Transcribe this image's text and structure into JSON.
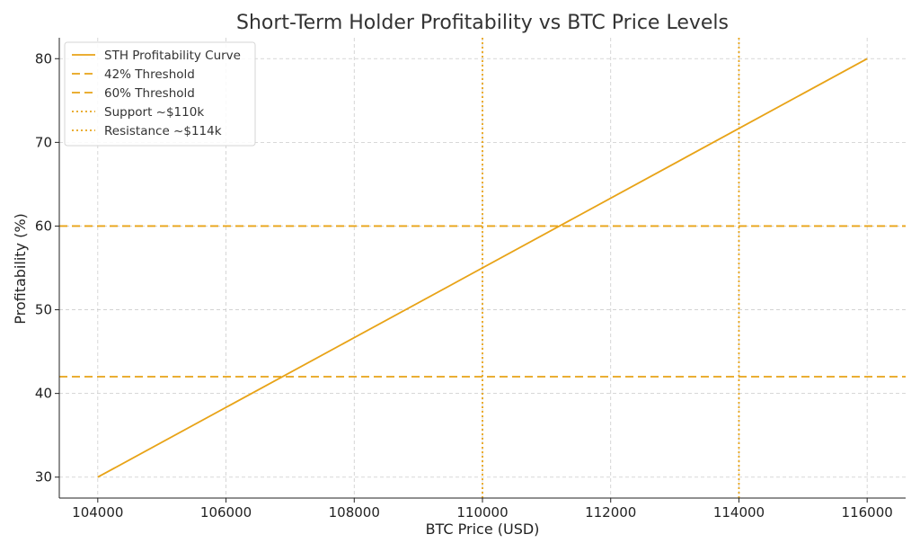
{
  "chart_data": {
    "type": "line",
    "title": "Short-Term Holder Profitability vs BTC Price Levels",
    "xlabel": "BTC Price (USD)",
    "ylabel": "Profitability (%)",
    "xlim": [
      103400,
      116600
    ],
    "ylim": [
      27.5,
      82.5
    ],
    "xticks": [
      104000,
      106000,
      108000,
      110000,
      112000,
      114000,
      116000
    ],
    "yticks": [
      30,
      40,
      50,
      60,
      70,
      80
    ],
    "grid": true,
    "legend_position": "top-left",
    "color": "#e8a317",
    "series": [
      {
        "name": "STH Profitability Curve",
        "style": "solid",
        "x": [
          104000,
          116000
        ],
        "y": [
          30,
          80
        ]
      }
    ],
    "hlines": [
      {
        "name": "42% Threshold",
        "style": "dashed",
        "y": 42
      },
      {
        "name": "60% Threshold",
        "style": "dashed",
        "y": 60
      }
    ],
    "vlines": [
      {
        "name": "Support ~$110k",
        "style": "dotted",
        "x": 110000
      },
      {
        "name": "Resistance ~$114k",
        "style": "dotted",
        "x": 114000
      }
    ]
  }
}
